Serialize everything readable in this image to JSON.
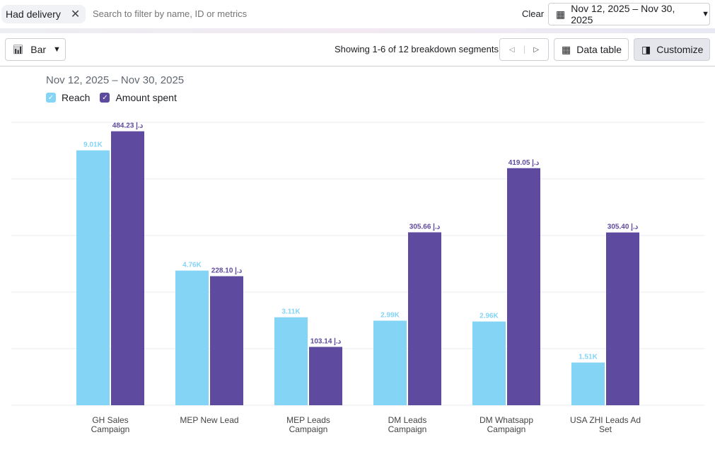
{
  "filter_chip": {
    "label": "Had delivery",
    "icon": "close-icon"
  },
  "search": {
    "placeholder": "Search to filter by name, ID or metrics"
  },
  "clear_label": "Clear",
  "date_range": "Nov 12, 2025 – Nov 30, 2025",
  "toolbar": {
    "chart_type": "Bar",
    "showing": "Showing 1-6 of 12 breakdown segments",
    "data_table": "Data table",
    "customize": "Customize"
  },
  "chart_data": {
    "type": "bar",
    "subtitle": "Nov 12, 2025 – Nov 30, 2025",
    "categories": [
      [
        "GH Sales",
        "Campaign"
      ],
      [
        "MEP New Lead"
      ],
      [
        "MEP Leads",
        "Campaign"
      ],
      [
        "DM Leads",
        "Campaign"
      ],
      [
        "DM Whatsapp",
        "Campaign"
      ],
      [
        "USA ZHI Leads Ad",
        "Set"
      ]
    ],
    "series": [
      {
        "name": "Reach",
        "color": "#84d4f6",
        "values": [
          9010,
          4760,
          3110,
          2990,
          2960,
          1510
        ],
        "labels": [
          "9.01K",
          "4.76K",
          "3.11K",
          "2.99K",
          "2.96K",
          "1.51K"
        ],
        "ylim": [
          0,
          10000
        ]
      },
      {
        "name": "Amount spent",
        "color": "#5e4a9e",
        "values": [
          484.23,
          228.1,
          103.14,
          305.66,
          419.05,
          305.4
        ],
        "labels": [
          "484.23 د.إ",
          "228.10 د.إ",
          "103.14 د.إ",
          "305.66 د.إ",
          "419.05 د.إ",
          "305.40 د.إ"
        ],
        "ylim": [
          0,
          500
        ]
      }
    ],
    "grid": true,
    "legend": "top-left"
  }
}
